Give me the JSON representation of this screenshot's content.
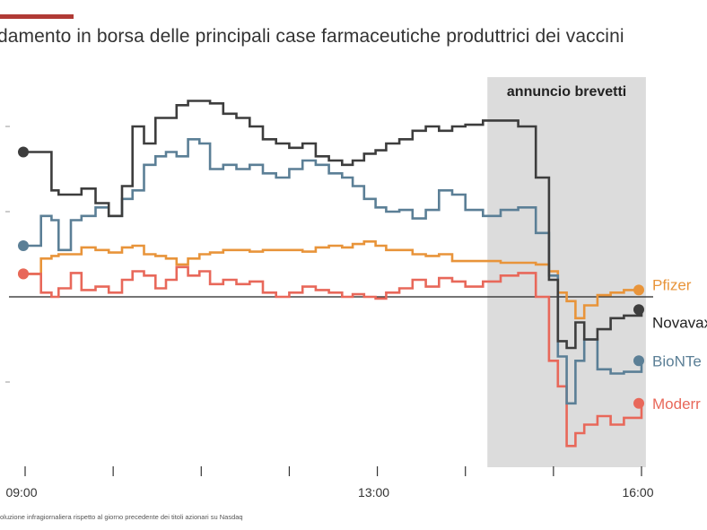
{
  "title": "damento in borsa delle principali case farmaceutiche produttrici dei vaccini",
  "footnote": "oluzione infragiornaliera rispetto al giorno precedente dei titoli azionari su Nasdaq",
  "colors": {
    "accent": "#b03a35",
    "band": "#dcdcdc",
    "Pfizer": "#e8943a",
    "Novavax": "#3d3d3d",
    "BioNTech": "#5b7f96",
    "Moderna": "#e8685a"
  },
  "chart_data": {
    "type": "line",
    "title": "damento in borsa delle principali case farmaceutiche produttrici dei vaccini",
    "xlabel": "",
    "ylabel": "",
    "x_tick_labels": [
      "09:00",
      "13:00",
      "16:00"
    ],
    "x_ticks": [
      9,
      10,
      11,
      12,
      13,
      14,
      15,
      16
    ],
    "xlim": [
      8.6,
      16.4
    ],
    "ylim": [
      -2.1,
      2.8
    ],
    "baseline": 0,
    "annotation": {
      "label": "annuncio brevetti",
      "x_start": 14.25,
      "x_end": 16.05
    },
    "series": [
      {
        "name": "Pfizer",
        "label": "Pfizer",
        "x": [
          9.0,
          9.18,
          9.3,
          9.38,
          9.52,
          9.64,
          9.8,
          9.95,
          10.1,
          10.22,
          10.35,
          10.48,
          10.6,
          10.72,
          10.85,
          10.98,
          11.1,
          11.25,
          11.4,
          11.55,
          11.7,
          11.85,
          12.0,
          12.15,
          12.3,
          12.45,
          12.6,
          12.72,
          12.85,
          12.98,
          13.1,
          13.25,
          13.4,
          13.55,
          13.7,
          13.85,
          14.0,
          14.2,
          14.4,
          14.6,
          14.8,
          14.95,
          15.05,
          15.15,
          15.25,
          15.35,
          15.5,
          15.65,
          15.8,
          16.0
        ],
        "y": [
          0.27,
          0.45,
          0.48,
          0.5,
          0.5,
          0.58,
          0.55,
          0.52,
          0.58,
          0.6,
          0.5,
          0.48,
          0.45,
          0.38,
          0.45,
          0.5,
          0.52,
          0.55,
          0.55,
          0.53,
          0.55,
          0.55,
          0.55,
          0.53,
          0.58,
          0.6,
          0.58,
          0.62,
          0.65,
          0.6,
          0.55,
          0.55,
          0.5,
          0.48,
          0.5,
          0.42,
          0.42,
          0.42,
          0.4,
          0.4,
          0.38,
          0.3,
          0.05,
          -0.05,
          -0.25,
          -0.1,
          0.02,
          0.05,
          0.08,
          0.08
        ]
      },
      {
        "name": "Novavax",
        "label": "Novavax",
        "x": [
          9.0,
          9.18,
          9.3,
          9.38,
          9.52,
          9.64,
          9.8,
          9.95,
          10.1,
          10.22,
          10.35,
          10.48,
          10.6,
          10.72,
          10.85,
          10.98,
          11.1,
          11.25,
          11.4,
          11.55,
          11.7,
          11.85,
          12.0,
          12.15,
          12.3,
          12.45,
          12.6,
          12.72,
          12.85,
          12.98,
          13.1,
          13.25,
          13.4,
          13.55,
          13.7,
          13.85,
          14.0,
          14.2,
          14.4,
          14.6,
          14.8,
          14.95,
          15.05,
          15.15,
          15.25,
          15.35,
          15.5,
          15.65,
          15.8,
          16.0
        ],
        "y": [
          1.7,
          1.7,
          1.25,
          1.2,
          1.2,
          1.27,
          1.1,
          0.95,
          1.3,
          2.0,
          1.8,
          2.1,
          2.1,
          2.25,
          2.3,
          2.3,
          2.27,
          2.15,
          2.1,
          2.0,
          1.85,
          1.8,
          1.75,
          1.8,
          1.65,
          1.6,
          1.55,
          1.6,
          1.68,
          1.72,
          1.8,
          1.85,
          1.95,
          2.0,
          1.95,
          2.0,
          2.02,
          2.07,
          2.07,
          2.0,
          1.4,
          0.2,
          -0.52,
          -0.6,
          -0.3,
          -0.5,
          -0.38,
          -0.25,
          -0.22,
          -0.15
        ]
      },
      {
        "name": "BioNTech",
        "label": "BioNTe",
        "x": [
          9.0,
          9.18,
          9.3,
          9.38,
          9.52,
          9.64,
          9.8,
          9.95,
          10.1,
          10.22,
          10.35,
          10.48,
          10.6,
          10.72,
          10.85,
          10.98,
          11.1,
          11.25,
          11.4,
          11.55,
          11.7,
          11.85,
          12.0,
          12.15,
          12.3,
          12.45,
          12.6,
          12.72,
          12.85,
          12.98,
          13.1,
          13.25,
          13.4,
          13.55,
          13.7,
          13.85,
          14.0,
          14.2,
          14.4,
          14.6,
          14.8,
          14.95,
          15.05,
          15.15,
          15.25,
          15.35,
          15.5,
          15.65,
          15.8,
          16.0
        ],
        "y": [
          0.6,
          0.95,
          0.9,
          0.55,
          0.9,
          0.95,
          1.05,
          0.95,
          1.15,
          1.25,
          1.55,
          1.65,
          1.7,
          1.65,
          1.85,
          1.8,
          1.5,
          1.55,
          1.5,
          1.55,
          1.45,
          1.4,
          1.5,
          1.6,
          1.55,
          1.45,
          1.4,
          1.3,
          1.15,
          1.05,
          1.0,
          1.02,
          0.92,
          1.02,
          1.25,
          1.2,
          1.02,
          0.95,
          1.02,
          1.05,
          0.75,
          0.25,
          -0.7,
          -1.25,
          -0.75,
          -0.5,
          -0.85,
          -0.9,
          -0.88,
          -0.75
        ]
      },
      {
        "name": "Moderna",
        "label": "Moderr",
        "x": [
          9.0,
          9.18,
          9.3,
          9.38,
          9.52,
          9.64,
          9.8,
          9.95,
          10.1,
          10.22,
          10.35,
          10.48,
          10.6,
          10.72,
          10.85,
          10.98,
          11.1,
          11.25,
          11.4,
          11.55,
          11.7,
          11.85,
          12.0,
          12.15,
          12.3,
          12.45,
          12.6,
          12.72,
          12.85,
          12.98,
          13.1,
          13.25,
          13.4,
          13.55,
          13.7,
          13.85,
          14.0,
          14.2,
          14.4,
          14.6,
          14.8,
          14.95,
          15.05,
          15.15,
          15.25,
          15.35,
          15.5,
          15.65,
          15.8,
          16.0
        ],
        "y": [
          0.27,
          0.05,
          0.0,
          0.1,
          0.28,
          0.08,
          0.12,
          0.05,
          0.2,
          0.3,
          0.25,
          0.1,
          0.2,
          0.35,
          0.25,
          0.3,
          0.15,
          0.2,
          0.15,
          0.18,
          0.05,
          0.0,
          0.05,
          0.12,
          0.08,
          0.05,
          0.0,
          0.03,
          0.0,
          -0.02,
          0.05,
          0.1,
          0.2,
          0.12,
          0.22,
          0.18,
          0.12,
          0.18,
          0.25,
          0.28,
          0.0,
          -0.75,
          -1.05,
          -1.75,
          -1.6,
          -1.5,
          -1.4,
          -1.5,
          -1.42,
          -1.25
        ]
      }
    ]
  }
}
